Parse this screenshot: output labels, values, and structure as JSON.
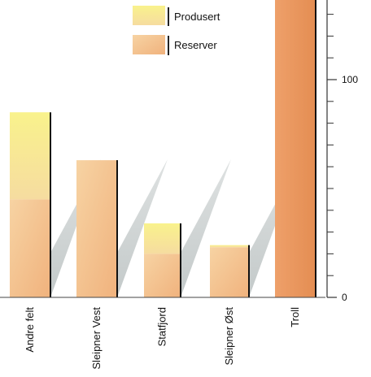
{
  "chart_data": {
    "type": "bar",
    "stacked": true,
    "categories": [
      "Andre felt",
      "Sleipner Vest",
      "Statfjord",
      "Sleipner Øst",
      "Troll"
    ],
    "series": [
      {
        "name": "Reserver",
        "values": [
          45,
          63,
          20,
          23,
          140
        ]
      },
      {
        "name": "Produsert",
        "values": [
          40,
          0,
          14,
          1,
          0
        ]
      }
    ],
    "y_ticks": [
      {
        "value": 0,
        "label": "0"
      },
      {
        "value": 100,
        "label": "100"
      }
    ],
    "ylim": [
      0,
      140
    ],
    "legend_position": "top",
    "grid": false,
    "colors": {
      "Reserver_top": "#f0b27d",
      "Reserver_bottom": "#f7d3a3",
      "Produsert_top": "#f8f08a",
      "Produsert_bottom": "#f7d79b",
      "troll_fill": "#e8965c",
      "shadow": "#c9cfcf",
      "axis": "#333333"
    }
  }
}
